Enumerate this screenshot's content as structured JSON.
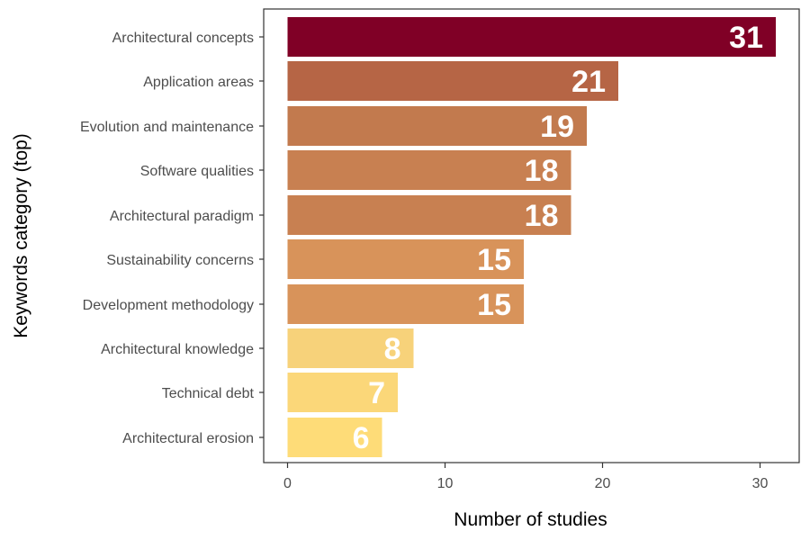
{
  "chart_data": {
    "type": "bar",
    "orientation": "horizontal",
    "title": "",
    "xlabel": "Number of studies",
    "ylabel": "Keywords category (top)",
    "categories": [
      "Architectural concepts",
      "Application areas",
      "Evolution and maintenance",
      "Software qualities",
      "Architectural paradigm",
      "Sustainability concerns",
      "Development methodology",
      "Architectural knowledge",
      "Technical debt",
      "Architectural erosion"
    ],
    "values": [
      31,
      21,
      19,
      18,
      18,
      15,
      15,
      8,
      7,
      6
    ],
    "value_labels": [
      "31",
      "21",
      "19",
      "18",
      "18",
      "15",
      "15",
      "8",
      "7",
      "6"
    ],
    "xlim": [
      0,
      31
    ],
    "xticks": [
      0,
      10,
      20,
      30
    ],
    "xtick_labels": [
      "0",
      "10",
      "20",
      "30"
    ],
    "grid": false,
    "legend": "none",
    "colors": {
      "high": "#800026",
      "low": "#fedc78",
      "axis": "#333333",
      "tick_text": "#4d4d4d",
      "value_text": "#ffffff"
    }
  }
}
